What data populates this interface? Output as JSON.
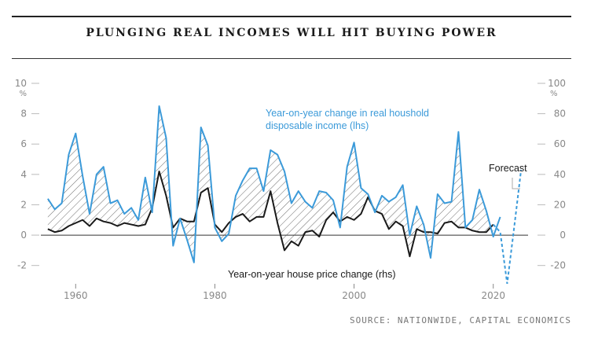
{
  "header": {
    "title": "PLUNGING REAL INCOMES WILL HIT BUYING POWER"
  },
  "footer": {
    "source": "SOURCE: NATIONWIDE, CAPITAL ECONOMICS"
  },
  "chart_data": {
    "type": "line",
    "title": "PLUNGING REAL INCOMES WILL HIT BUYING POWER",
    "x_ticks": [
      1960,
      1980,
      2000,
      2020
    ],
    "xlim": [
      1955,
      2025
    ],
    "left_axis": {
      "ylim": [
        -3,
        10
      ],
      "ticks": [
        "10",
        "8",
        "6",
        "4",
        "2",
        "0",
        "-2"
      ],
      "unit": "%"
    },
    "right_axis": {
      "ylim": [
        -30,
        100
      ],
      "ticks": [
        "100",
        "80",
        "60",
        "40",
        "20",
        "0",
        "-20"
      ],
      "unit": "%"
    },
    "series": [
      {
        "name": "Year-on-year change in real houshold disposable income (lhs)",
        "axis": "left",
        "color": "#3b9ad9",
        "x": [
          1956,
          1957,
          1958,
          1959,
          1960,
          1961,
          1962,
          1963,
          1964,
          1965,
          1966,
          1967,
          1968,
          1969,
          1970,
          1971,
          1972,
          1973,
          1974,
          1975,
          1976,
          1977,
          1978,
          1979,
          1980,
          1981,
          1982,
          1983,
          1984,
          1985,
          1986,
          1987,
          1988,
          1989,
          1990,
          1991,
          1992,
          1993,
          1994,
          1995,
          1996,
          1997,
          1998,
          1999,
          2000,
          2001,
          2002,
          2003,
          2004,
          2005,
          2006,
          2007,
          2008,
          2009,
          2010,
          2011,
          2012,
          2013,
          2014,
          2015,
          2016,
          2017,
          2018,
          2019,
          2020,
          2021
        ],
        "y": [
          2.4,
          1.7,
          2.1,
          5.3,
          6.7,
          3.9,
          1.4,
          4.0,
          4.5,
          2.1,
          2.3,
          1.4,
          1.8,
          1.0,
          3.8,
          1.5,
          8.5,
          6.4,
          -0.7,
          1.1,
          -0.3,
          -1.8,
          7.1,
          5.9,
          0.5,
          -0.4,
          0.1,
          2.6,
          3.6,
          4.4,
          4.4,
          2.9,
          5.6,
          5.3,
          4.2,
          2.1,
          2.9,
          2.2,
          1.8,
          2.9,
          2.8,
          2.3,
          0.5,
          4.5,
          6.1,
          3.1,
          2.7,
          1.5,
          2.6,
          2.2,
          2.5,
          3.3,
          0.0,
          1.9,
          0.7,
          -1.5,
          2.7,
          2.1,
          2.2,
          6.8,
          0.5,
          1.0,
          3.0,
          1.6,
          -0.1,
          1.2
        ]
      },
      {
        "name": "Year-on-year house price change (rhs)",
        "axis": "right",
        "color": "#1a1a1a",
        "x": [
          1956,
          1957,
          1958,
          1959,
          1960,
          1961,
          1962,
          1963,
          1964,
          1965,
          1966,
          1967,
          1968,
          1969,
          1970,
          1971,
          1972,
          1973,
          1974,
          1975,
          1976,
          1977,
          1978,
          1979,
          1980,
          1981,
          1982,
          1983,
          1984,
          1985,
          1986,
          1987,
          1988,
          1989,
          1990,
          1991,
          1992,
          1993,
          1994,
          1995,
          1996,
          1997,
          1998,
          1999,
          2000,
          2001,
          2002,
          2003,
          2004,
          2005,
          2006,
          2007,
          2008,
          2009,
          2010,
          2011,
          2012,
          2013,
          2014,
          2015,
          2016,
          2017,
          2018,
          2019,
          2020
        ],
        "y": [
          4,
          2,
          3,
          6,
          8,
          10,
          6,
          11,
          9,
          8,
          6,
          8,
          7,
          6,
          7,
          18,
          42,
          26,
          5,
          11,
          9,
          9,
          28,
          31,
          7,
          2,
          8,
          12,
          14,
          9,
          12,
          12,
          29,
          8,
          -10,
          -4,
          -7,
          2,
          3,
          -1,
          10,
          15,
          9,
          12,
          10,
          14,
          25,
          16,
          14,
          4,
          9,
          6,
          -14,
          4,
          2,
          2,
          1,
          8,
          9,
          5,
          5,
          3,
          2,
          2,
          7
        ]
      },
      {
        "name": "Forecast",
        "axis": "right",
        "color": "#3b9ad9",
        "style": "dashed",
        "x": [
          2020,
          2021,
          2022,
          2023,
          2024
        ],
        "y": [
          7,
          2,
          -32,
          5,
          43
        ]
      }
    ],
    "annotations": {
      "income": [
        "Year-on-year change in real houshold",
        "disposable income (lhs)"
      ],
      "house": "Year-on-year house price change (rhs)",
      "forecast": "Forecast"
    },
    "grid": false,
    "legend": "inline annotations"
  }
}
